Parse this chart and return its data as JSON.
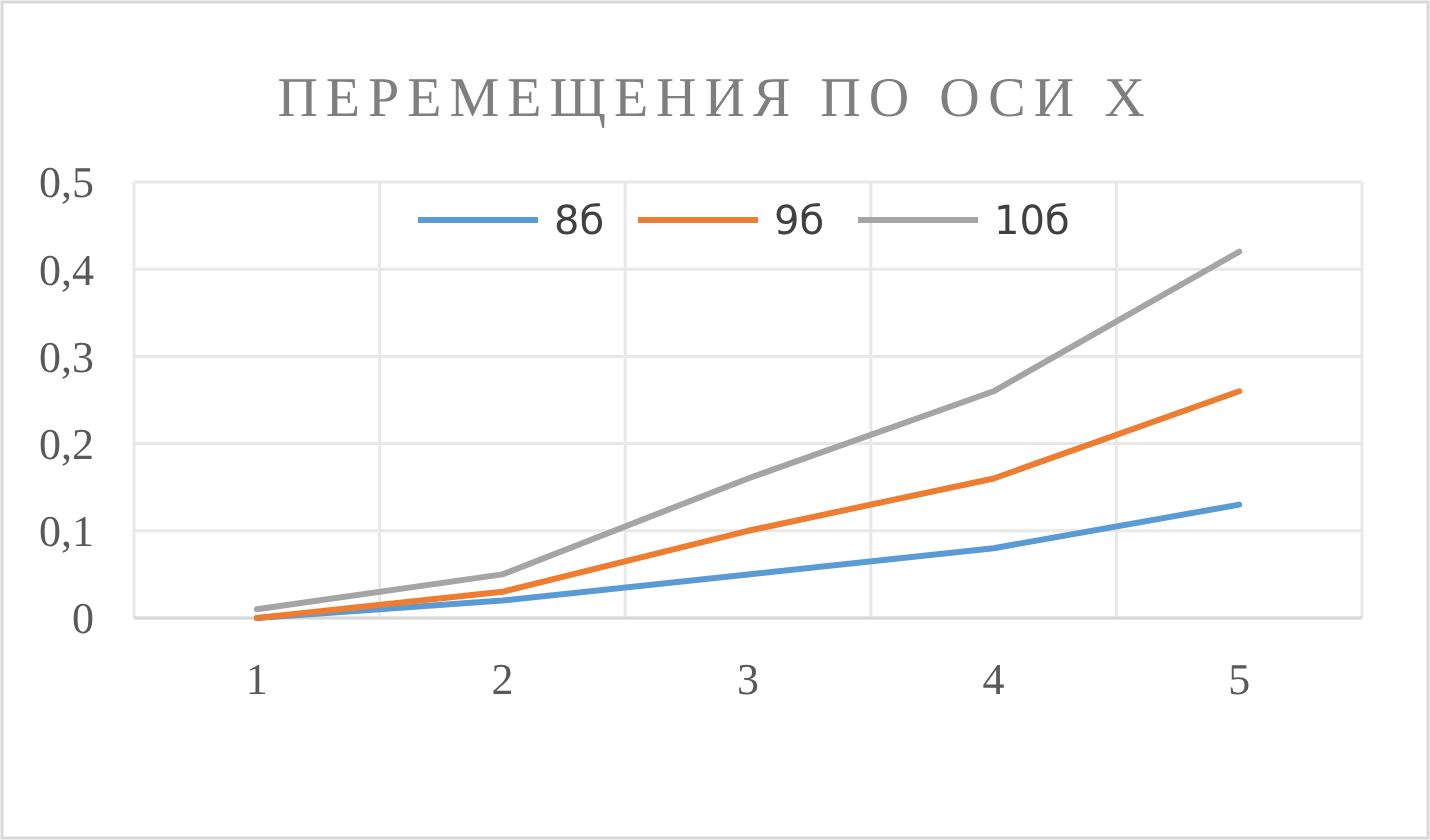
{
  "chart_data": {
    "type": "line",
    "title": "ПЕРЕМЕЩЕНИЯ ПО ОСИ X",
    "categories": [
      "1",
      "2",
      "3",
      "4",
      "5"
    ],
    "series": [
      {
        "name": "8б",
        "color": "#5b9bd5",
        "values": [
          0,
          0.02,
          0.05,
          0.08,
          0.13
        ]
      },
      {
        "name": "9б",
        "color": "#ed7d31",
        "values": [
          0,
          0.03,
          0.1,
          0.16,
          0.26
        ]
      },
      {
        "name": "10б",
        "color": "#a5a5a5",
        "values": [
          0.01,
          0.05,
          0.16,
          0.26,
          0.42
        ]
      }
    ],
    "ylim": [
      0,
      0.5
    ],
    "yticks": [
      0,
      {
        "value": 0.1,
        "label": "0,1"
      },
      {
        "value": 0.2,
        "label": "0,2"
      },
      {
        "value": 0.3,
        "label": "0,3"
      },
      {
        "value": 0.4,
        "label": "0,4"
      },
      {
        "value": 0.5,
        "label": "0,5"
      }
    ],
    "grid": true,
    "legend": "top",
    "marker": "none",
    "line_style": "solid"
  }
}
